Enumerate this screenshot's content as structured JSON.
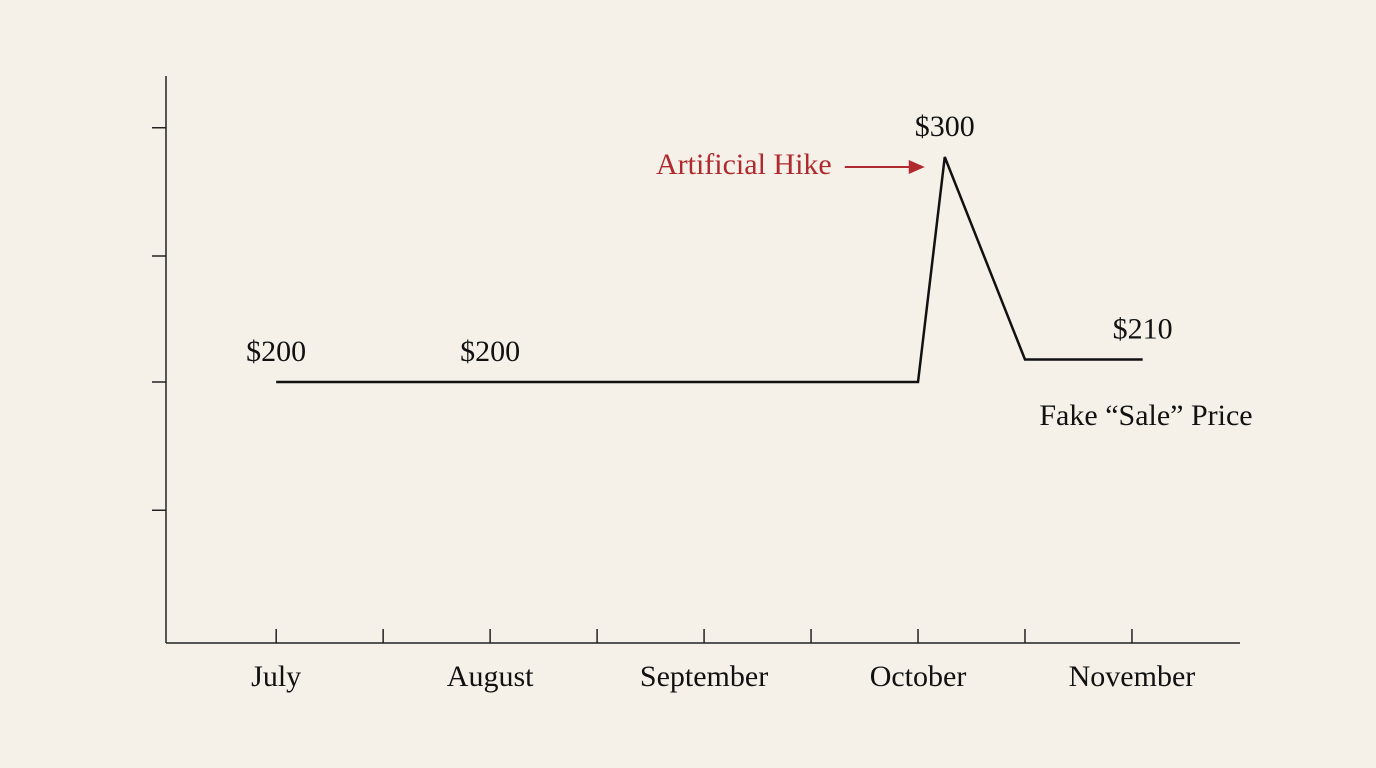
{
  "chart_data": {
    "type": "line",
    "x": [
      0,
      2,
      6,
      6.25,
      7,
      8.1
    ],
    "values": [
      200,
      200,
      200,
      300,
      210,
      210
    ],
    "value_labels": [
      "$200",
      "$200",
      null,
      "$300",
      null,
      "$210"
    ],
    "color": "#111111",
    "xlim": [
      -1.03,
      9.01
    ],
    "xticks": [
      {
        "value": 0,
        "label": "July"
      },
      {
        "value": 1,
        "label": null
      },
      {
        "value": 2,
        "label": "August"
      },
      {
        "value": 3,
        "label": null
      },
      {
        "value": 4,
        "label": "September"
      },
      {
        "value": 5,
        "label": null
      },
      {
        "value": 6,
        "label": "October"
      },
      {
        "value": 7,
        "label": null
      },
      {
        "value": 8,
        "label": "November"
      }
    ],
    "ylim": [
      84,
      336
    ],
    "yticks": [
      {
        "value": 143,
        "label": null
      },
      {
        "value": 200,
        "label": null
      },
      {
        "value": 256,
        "label": null
      },
      {
        "value": 313,
        "label": null
      }
    ],
    "annotations": [
      {
        "text": "Artificial Hike",
        "color": "#b0292e"
      },
      {
        "text": "Fake “Sale” Price",
        "color": "#111111"
      }
    ]
  }
}
